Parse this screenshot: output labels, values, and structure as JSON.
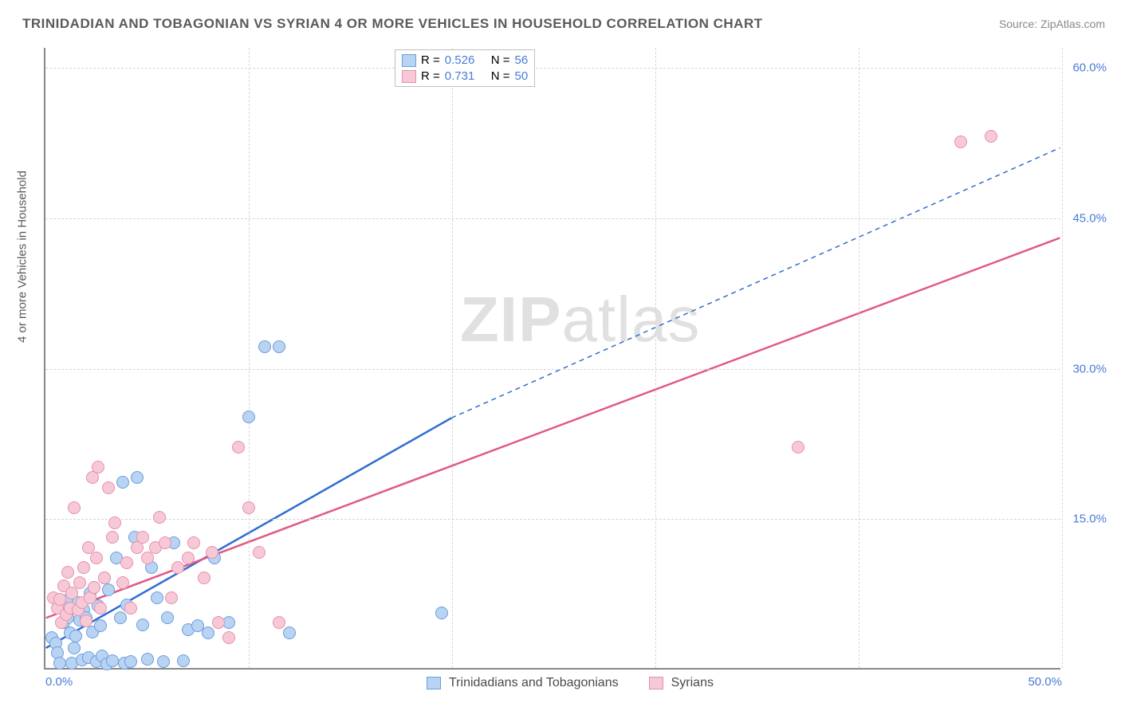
{
  "title": "TRINIDADIAN AND TOBAGONIAN VS SYRIAN 4 OR MORE VEHICLES IN HOUSEHOLD CORRELATION CHART",
  "source": "Source: ZipAtlas.com",
  "watermark": "ZIPatlas",
  "ylabel": "4 or more Vehicles in Household",
  "chart": {
    "type": "scatter-with-regression",
    "xlim": [
      0,
      50
    ],
    "ylim": [
      0,
      62
    ],
    "x_ticks": [
      0,
      50
    ],
    "x_tick_labels": [
      "0.0%",
      "50.0%"
    ],
    "y_ticks": [
      15,
      30,
      45,
      60
    ],
    "y_tick_labels": [
      "15.0%",
      "30.0%",
      "45.0%",
      "60.0%"
    ],
    "x_grid_at": [
      10,
      20,
      30,
      40,
      50
    ],
    "y_grid_at": [
      15,
      30,
      45,
      60
    ],
    "background_color": "#ffffff",
    "grid_color": "#d6d6d6",
    "axis_color": "#888888",
    "tick_label_color": "#4a7bd6",
    "label_fontsize": 15,
    "title_fontsize": 17,
    "point_radius": 8,
    "series": [
      {
        "name": "Trinidadians and Tobagonians",
        "color_fill": "#b9d3f2",
        "color_stroke": "#6a9de0",
        "line_color": "#2f6cd1",
        "line_dash_extend": true,
        "R": "0.526",
        "N": "56",
        "trend": {
          "x1": 0,
          "y1": 2,
          "x2_solid": 20,
          "y2_solid": 25,
          "x2": 50,
          "y2": 52
        },
        "points": [
          [
            0.3,
            3
          ],
          [
            0.5,
            2.5
          ],
          [
            0.6,
            1.5
          ],
          [
            0.7,
            0.5
          ],
          [
            0.8,
            6
          ],
          [
            0.9,
            4.5
          ],
          [
            1.0,
            5.5
          ],
          [
            1.1,
            5
          ],
          [
            1.2,
            7
          ],
          [
            1.2,
            3.5
          ],
          [
            1.3,
            0.5
          ],
          [
            1.4,
            2
          ],
          [
            1.5,
            3.2
          ],
          [
            1.6,
            6.5
          ],
          [
            1.7,
            4.8
          ],
          [
            1.8,
            0.8
          ],
          [
            1.9,
            5.8
          ],
          [
            2.0,
            5
          ],
          [
            2.1,
            1.0
          ],
          [
            2.2,
            7.5
          ],
          [
            2.3,
            3.6
          ],
          [
            2.4,
            8
          ],
          [
            2.5,
            0.6
          ],
          [
            2.6,
            6.2
          ],
          [
            2.7,
            4.2
          ],
          [
            2.8,
            1.2
          ],
          [
            2.9,
            9
          ],
          [
            3.0,
            0.4
          ],
          [
            3.1,
            7.8
          ],
          [
            3.3,
            0.7
          ],
          [
            3.5,
            11
          ],
          [
            3.7,
            5.0
          ],
          [
            3.9,
            0.5
          ],
          [
            4.0,
            6.3
          ],
          [
            4.2,
            0.6
          ],
          [
            4.4,
            13
          ],
          [
            4.5,
            19
          ],
          [
            4.8,
            4.3
          ],
          [
            5.0,
            0.9
          ],
          [
            5.2,
            10
          ],
          [
            5.5,
            7.0
          ],
          [
            5.8,
            0.6
          ],
          [
            6.0,
            5.0
          ],
          [
            6.3,
            12.5
          ],
          [
            6.8,
            0.7
          ],
          [
            7.0,
            3.8
          ],
          [
            7.5,
            4.2
          ],
          [
            8.0,
            3.5
          ],
          [
            8.3,
            11
          ],
          [
            9.0,
            4.5
          ],
          [
            10.0,
            25
          ],
          [
            10.8,
            32
          ],
          [
            11.5,
            32
          ],
          [
            12.0,
            3.5
          ],
          [
            19.5,
            5.5
          ],
          [
            3.8,
            18.5
          ]
        ]
      },
      {
        "name": "Syrians",
        "color_fill": "#f7c9d6",
        "color_stroke": "#e690aa",
        "line_color": "#e05a86",
        "line_dash_extend": false,
        "R": "0.731",
        "N": "50",
        "trend": {
          "x1": 0,
          "y1": 5,
          "x2": 50,
          "y2": 43
        },
        "points": [
          [
            0.4,
            7
          ],
          [
            0.6,
            6
          ],
          [
            0.7,
            6.8
          ],
          [
            0.8,
            4.5
          ],
          [
            0.9,
            8.2
          ],
          [
            1.0,
            5.3
          ],
          [
            1.1,
            9.5
          ],
          [
            1.2,
            6.0
          ],
          [
            1.3,
            7.5
          ],
          [
            1.4,
            16
          ],
          [
            1.6,
            5.8
          ],
          [
            1.7,
            8.5
          ],
          [
            1.8,
            6.5
          ],
          [
            1.9,
            10
          ],
          [
            2.0,
            4.7
          ],
          [
            2.1,
            12
          ],
          [
            2.2,
            7.0
          ],
          [
            2.3,
            19
          ],
          [
            2.4,
            8.0
          ],
          [
            2.5,
            11
          ],
          [
            2.7,
            6.0
          ],
          [
            2.9,
            9.0
          ],
          [
            3.1,
            18
          ],
          [
            3.3,
            13
          ],
          [
            3.4,
            14.5
          ],
          [
            3.8,
            8.5
          ],
          [
            4.0,
            10.5
          ],
          [
            4.2,
            6.0
          ],
          [
            4.5,
            12
          ],
          [
            4.8,
            13
          ],
          [
            5.0,
            11
          ],
          [
            5.4,
            12
          ],
          [
            5.6,
            15
          ],
          [
            5.9,
            12.5
          ],
          [
            6.2,
            7.0
          ],
          [
            6.5,
            10
          ],
          [
            7.0,
            11
          ],
          [
            7.3,
            12.5
          ],
          [
            7.8,
            9.0
          ],
          [
            8.2,
            11.5
          ],
          [
            8.5,
            4.5
          ],
          [
            9.0,
            3.0
          ],
          [
            9.5,
            22
          ],
          [
            10.0,
            16
          ],
          [
            10.5,
            11.5
          ],
          [
            11.5,
            4.5
          ],
          [
            37.0,
            22
          ],
          [
            46.5,
            53
          ],
          [
            45.0,
            52.5
          ],
          [
            2.6,
            20
          ]
        ]
      }
    ]
  },
  "legend_top": {
    "rows": [
      {
        "swatch_fill": "#b9d3f2",
        "swatch_stroke": "#6a9de0",
        "r_label": "R =",
        "r_value": "0.526",
        "n_label": "N =",
        "n_value": "56"
      },
      {
        "swatch_fill": "#f7c9d6",
        "swatch_stroke": "#e690aa",
        "r_label": "R =",
        "r_value": "0.731",
        "n_label": "N =",
        "n_value": "50"
      }
    ]
  },
  "legend_bottom": [
    {
      "swatch_fill": "#b9d3f2",
      "swatch_stroke": "#6a9de0",
      "label": "Trinidadians and Tobagonians"
    },
    {
      "swatch_fill": "#f7c9d6",
      "swatch_stroke": "#e690aa",
      "label": "Syrians"
    }
  ]
}
